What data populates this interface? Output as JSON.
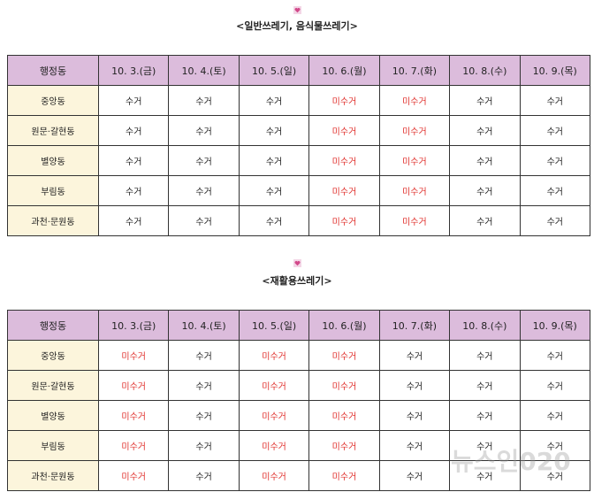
{
  "tables": [
    {
      "title": "<일반쓰레기, 음식물쓰레기>",
      "header": [
        "행정동",
        "10. 3.(금)",
        "10. 4.(토)",
        "10. 5.(일)",
        "10. 6.(월)",
        "10. 7.(화)",
        "10. 8.(수)",
        "10. 9.(목)"
      ],
      "rows": [
        [
          "중앙동",
          "수거",
          "수거",
          "수거",
          "미수거",
          "미수거",
          "수거",
          "수거"
        ],
        [
          "원문·갈현동",
          "수거",
          "수거",
          "수거",
          "미수거",
          "미수거",
          "수거",
          "수거"
        ],
        [
          "별양동",
          "수거",
          "수거",
          "수거",
          "미수거",
          "미수거",
          "수거",
          "수거"
        ],
        [
          "부림동",
          "수거",
          "수거",
          "수거",
          "미수거",
          "미수거",
          "수거",
          "수거"
        ],
        [
          "과천·문원동",
          "수거",
          "수거",
          "수거",
          "미수거",
          "미수거",
          "수거",
          "수거"
        ]
      ]
    },
    {
      "title": "<재활용쓰레기>",
      "header": [
        "행정동",
        "10. 3.(금)",
        "10. 4.(토)",
        "10. 5.(일)",
        "10. 6.(월)",
        "10. 7.(화)",
        "10. 8.(수)",
        "10. 9.(목)"
      ],
      "rows": [
        [
          "중앙동",
          "미수거",
          "수거",
          "미수거",
          "미수거",
          "수거",
          "수거",
          "수거"
        ],
        [
          "원문·갈현동",
          "미수거",
          "수거",
          "미수거",
          "미수거",
          "수거",
          "수거",
          "수거"
        ],
        [
          "별양동",
          "미수거",
          "수거",
          "미수거",
          "미수거",
          "수거",
          "수거",
          "수거"
        ],
        [
          "부림동",
          "미수거",
          "수거",
          "미수거",
          "미수거",
          "수거",
          "수거",
          "수거"
        ],
        [
          "과천·문원동",
          "미수거",
          "수거",
          "미수거",
          "미수거",
          "수거",
          "수거",
          "수거"
        ]
      ]
    }
  ],
  "cell_colors": {
    "미수거": "#e0302c"
  },
  "watermark": "뉴스인020"
}
